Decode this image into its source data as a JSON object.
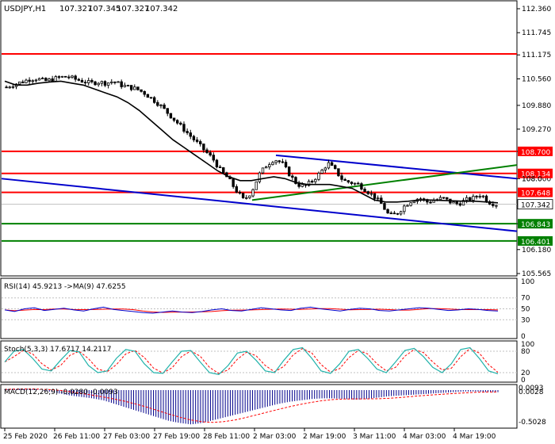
{
  "header": {
    "symbol_label": "USDJPY,H1",
    "ohlc": [
      "107.327",
      "107.345",
      "107.327",
      "107.342"
    ]
  },
  "colors": {
    "background": "#ffffff",
    "border": "#000000",
    "bull_candle": "#000000",
    "bear_candle": "#000000",
    "ma_line": "#000000",
    "resistance": "#ff0000",
    "support": "#008000",
    "channel": "#0000cc",
    "trend_green": "#008000",
    "rsi_line": "#0000cc",
    "rsi_ma": "#ff0000",
    "stoch_main": "#20b2aa",
    "stoch_signal": "#ff0000",
    "macd_hist": "#00008b",
    "macd_signal": "#ff0000",
    "price_badge_bg": "#ffffff"
  },
  "chart_data": {
    "type": "candlestick",
    "y_range": [
      105.565,
      112.36
    ],
    "y_ticks": [
      "112.360",
      "111.745",
      "111.175",
      "110.560",
      "109.880",
      "109.270",
      "108.700",
      "108.000",
      "107.342",
      "106.843",
      "106.180",
      "105.565"
    ],
    "x_labels": [
      "25 Feb 2020",
      "26 Feb 11:00",
      "27 Feb 03:00",
      "27 Feb 19:00",
      "28 Feb 11:00",
      "2 Mar 03:00",
      "2 Mar 19:00",
      "3 Mar 11:00",
      "4 Mar 03:00",
      "4 Mar 19:00"
    ],
    "close_path": [
      110.35,
      110.42,
      110.48,
      110.55,
      110.57,
      110.5,
      110.55,
      110.6,
      110.62,
      110.55,
      110.5,
      110.45,
      110.48,
      110.45,
      110.5,
      110.4,
      110.35,
      110.3,
      110.2,
      110.05,
      109.9,
      109.7,
      109.5,
      109.3,
      109.1,
      108.9,
      108.7,
      108.5,
      108.2,
      108.0,
      107.7,
      107.45,
      107.65,
      108.1,
      108.35,
      108.5,
      108.4,
      108.1,
      107.85,
      107.8,
      107.95,
      108.15,
      108.4,
      108.2,
      107.95,
      107.9,
      107.85,
      107.7,
      107.55,
      107.35,
      107.05,
      107.1,
      107.3,
      107.45,
      107.5,
      107.4,
      107.45,
      107.5,
      107.4,
      107.35,
      107.45,
      107.5,
      107.6,
      107.4,
      107.342
    ],
    "moving_average_path": [
      110.5,
      110.4,
      110.4,
      110.45,
      110.48,
      110.5,
      110.45,
      110.4,
      110.3,
      110.2,
      110.1,
      109.95,
      109.75,
      109.5,
      109.25,
      109.0,
      108.8,
      108.6,
      108.4,
      108.2,
      108.05,
      107.95,
      107.95,
      108.0,
      108.05,
      108.0,
      107.9,
      107.85,
      107.85,
      107.85,
      107.8,
      107.75,
      107.6,
      107.45,
      107.4,
      107.4,
      107.42,
      107.45,
      107.45,
      107.44,
      107.43,
      107.42,
      107.42,
      107.4,
      107.38
    ],
    "annotations": [
      {
        "type": "hline",
        "value": 111.2,
        "color": "#ff0000",
        "label": ""
      },
      {
        "type": "hline",
        "value": 108.7,
        "color": "#ff0000",
        "label": "108.700"
      },
      {
        "type": "hline",
        "value": 108.134,
        "color": "#ff0000",
        "label": "108.134"
      },
      {
        "type": "hline",
        "value": 107.648,
        "color": "#ff0000",
        "label": "107.648"
      },
      {
        "type": "hline",
        "value": 106.843,
        "color": "#008000",
        "label": "106.843"
      },
      {
        "type": "hline",
        "value": 106.401,
        "color": "#008000",
        "label": "106.401"
      }
    ],
    "last_price_label": "107.342",
    "hidden_axis_label": "108.0",
    "grid": false
  },
  "rsi": {
    "label": "RSI(14) 45.9213 ->MA(9) 47.6255",
    "ticks": [
      "100",
      "70",
      "50",
      "30",
      "0"
    ],
    "values": [
      48,
      45,
      50,
      52,
      47,
      49,
      51,
      48,
      46,
      50,
      53,
      49,
      47,
      45,
      43,
      42,
      44,
      46,
      44,
      43,
      45,
      48,
      50,
      47,
      46,
      49,
      52,
      50,
      48,
      47,
      51,
      53,
      50,
      48,
      46,
      49,
      51,
      50,
      47,
      46,
      48,
      50,
      52,
      51,
      49,
      47,
      48,
      50,
      49,
      47,
      46
    ]
  },
  "stoch": {
    "label": "Stoch(5,3,3) 17.6717 14.2117",
    "ticks": [
      "100",
      "80",
      "20",
      "0"
    ],
    "values": [
      50,
      80,
      85,
      60,
      30,
      25,
      55,
      82,
      78,
      40,
      20,
      25,
      60,
      85,
      80,
      45,
      20,
      18,
      50,
      80,
      82,
      50,
      20,
      15,
      40,
      75,
      80,
      55,
      25,
      20,
      55,
      85,
      90,
      60,
      25,
      18,
      45,
      80,
      85,
      60,
      30,
      20,
      50,
      82,
      88,
      65,
      35,
      20,
      45,
      85,
      90,
      60,
      25,
      17
    ]
  },
  "macd": {
    "label": "MACD(12,26,9) -0.0280 -0.0093",
    "ticks": [
      "0.0093",
      "0.0028",
      "-0.5028"
    ],
    "hist": [
      0.01,
      0.02,
      0.02,
      0.01,
      -0.02,
      -0.05,
      -0.08,
      -0.1,
      -0.12,
      -0.15,
      -0.2,
      -0.25,
      -0.3,
      -0.35,
      -0.4,
      -0.45,
      -0.48,
      -0.5,
      -0.48,
      -0.44,
      -0.4,
      -0.36,
      -0.32,
      -0.28,
      -0.24,
      -0.2,
      -0.17,
      -0.15,
      -0.13,
      -0.12,
      -0.12,
      -0.13,
      -0.14,
      -0.13,
      -0.11,
      -0.09,
      -0.08,
      -0.07,
      -0.06,
      -0.05,
      -0.04,
      -0.03,
      -0.02,
      -0.02,
      -0.03,
      -0.03
    ]
  }
}
